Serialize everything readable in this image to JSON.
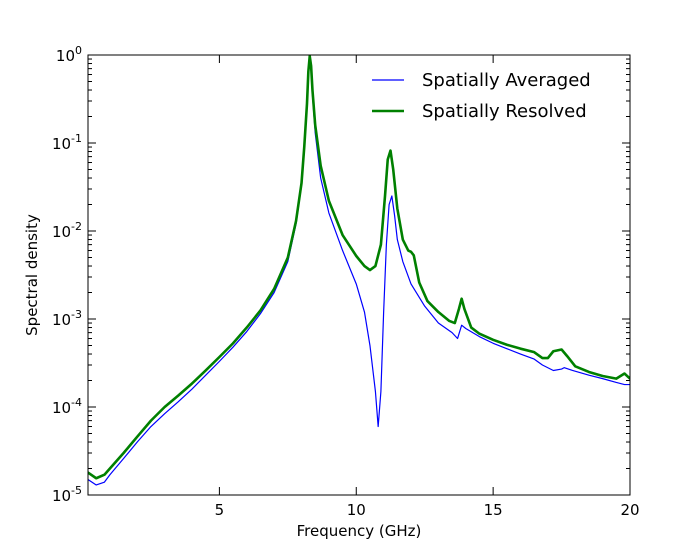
{
  "chart_data": {
    "type": "line",
    "title": "",
    "xlabel": "Frequency (GHz)",
    "ylabel": "Spectral density",
    "xlim": [
      0.2,
      20
    ],
    "ylim": [
      1e-05,
      1
    ],
    "yscale": "log",
    "grid": false,
    "legend_position": "top-right",
    "x_ticks": [
      {
        "value": 5,
        "label": "5"
      },
      {
        "value": 10,
        "label": "10"
      },
      {
        "value": 15,
        "label": "15"
      },
      {
        "value": 20,
        "label": "20"
      }
    ],
    "y_ticks": [
      {
        "value": 1e-05,
        "base": "10",
        "exp": "-5"
      },
      {
        "value": 0.0001,
        "base": "10",
        "exp": "-4"
      },
      {
        "value": 0.001,
        "base": "10",
        "exp": "-3"
      },
      {
        "value": 0.01,
        "base": "10",
        "exp": "-2"
      },
      {
        "value": 0.1,
        "base": "10",
        "exp": "-1"
      },
      {
        "value": 1,
        "base": "10",
        "exp": "0"
      }
    ],
    "series": [
      {
        "name": "Spatially Averaged",
        "color": "#0000ff",
        "line_width": 1.2,
        "points": [
          [
            0.2,
            1.5e-05
          ],
          [
            0.5,
            1.3e-05
          ],
          [
            0.8,
            1.4e-05
          ],
          [
            1.0,
            1.7e-05
          ],
          [
            1.5,
            2.6e-05
          ],
          [
            2.0,
            4e-05
          ],
          [
            2.5,
            6e-05
          ],
          [
            3.0,
            8.4e-05
          ],
          [
            3.5,
            0.000115
          ],
          [
            4.0,
            0.00016
          ],
          [
            4.5,
            0.00023
          ],
          [
            5.0,
            0.00033
          ],
          [
            5.5,
            0.00048
          ],
          [
            6.0,
            0.00072
          ],
          [
            6.5,
            0.00115
          ],
          [
            7.0,
            0.002
          ],
          [
            7.5,
            0.0045
          ],
          [
            7.8,
            0.012
          ],
          [
            8.0,
            0.033
          ],
          [
            8.1,
            0.08
          ],
          [
            8.2,
            0.25
          ],
          [
            8.25,
            0.6
          ],
          [
            8.3,
            0.95
          ],
          [
            8.35,
            0.7
          ],
          [
            8.4,
            0.35
          ],
          [
            8.5,
            0.13
          ],
          [
            8.7,
            0.04
          ],
          [
            9.0,
            0.016
          ],
          [
            9.5,
            0.006
          ],
          [
            10.0,
            0.0025
          ],
          [
            10.3,
            0.0012
          ],
          [
            10.5,
            0.0005
          ],
          [
            10.7,
            0.00015
          ],
          [
            10.8,
            6e-05
          ],
          [
            10.9,
            0.00015
          ],
          [
            11.0,
            0.0012
          ],
          [
            11.1,
            0.007
          ],
          [
            11.2,
            0.02
          ],
          [
            11.3,
            0.025
          ],
          [
            11.4,
            0.015
          ],
          [
            11.5,
            0.008
          ],
          [
            11.7,
            0.0045
          ],
          [
            12.0,
            0.0025
          ],
          [
            12.5,
            0.0014
          ],
          [
            13.0,
            0.0009
          ],
          [
            13.5,
            0.0007
          ],
          [
            13.7,
            0.0006
          ],
          [
            13.85,
            0.00085
          ],
          [
            14.0,
            0.00078
          ],
          [
            14.5,
            0.00063
          ],
          [
            15.0,
            0.00053
          ],
          [
            15.5,
            0.00046
          ],
          [
            16.0,
            0.0004
          ],
          [
            16.5,
            0.00035
          ],
          [
            16.8,
            0.0003
          ],
          [
            17.2,
            0.00026
          ],
          [
            17.5,
            0.00027
          ],
          [
            17.6,
            0.00028
          ],
          [
            17.9,
            0.00026
          ],
          [
            18.5,
            0.00023
          ],
          [
            19.0,
            0.00021
          ],
          [
            19.5,
            0.00019
          ],
          [
            19.8,
            0.00018
          ],
          [
            20.0,
            0.00018
          ]
        ]
      },
      {
        "name": "Spatially Resolved",
        "color": "#008000",
        "line_width": 2.6,
        "points": [
          [
            0.2,
            1.8e-05
          ],
          [
            0.5,
            1.55e-05
          ],
          [
            0.8,
            1.7e-05
          ],
          [
            1.0,
            2e-05
          ],
          [
            1.5,
            3e-05
          ],
          [
            2.0,
            4.6e-05
          ],
          [
            2.5,
            7e-05
          ],
          [
            3.0,
            0.0001
          ],
          [
            3.5,
            0.000135
          ],
          [
            4.0,
            0.000185
          ],
          [
            4.5,
            0.00026
          ],
          [
            5.0,
            0.00037
          ],
          [
            5.5,
            0.00053
          ],
          [
            6.0,
            0.0008
          ],
          [
            6.5,
            0.00125
          ],
          [
            7.0,
            0.0022
          ],
          [
            7.5,
            0.005
          ],
          [
            7.8,
            0.013
          ],
          [
            8.0,
            0.035
          ],
          [
            8.1,
            0.09
          ],
          [
            8.2,
            0.28
          ],
          [
            8.25,
            0.65
          ],
          [
            8.3,
            0.97
          ],
          [
            8.35,
            0.75
          ],
          [
            8.4,
            0.4
          ],
          [
            8.5,
            0.16
          ],
          [
            8.7,
            0.055
          ],
          [
            9.0,
            0.022
          ],
          [
            9.5,
            0.009
          ],
          [
            10.0,
            0.0052
          ],
          [
            10.3,
            0.004
          ],
          [
            10.5,
            0.0036
          ],
          [
            10.7,
            0.004
          ],
          [
            10.9,
            0.007
          ],
          [
            11.05,
            0.025
          ],
          [
            11.15,
            0.065
          ],
          [
            11.25,
            0.082
          ],
          [
            11.35,
            0.05
          ],
          [
            11.5,
            0.018
          ],
          [
            11.7,
            0.008
          ],
          [
            11.9,
            0.006
          ],
          [
            12.0,
            0.0058
          ],
          [
            12.1,
            0.0053
          ],
          [
            12.3,
            0.0026
          ],
          [
            12.6,
            0.0016
          ],
          [
            13.0,
            0.0012
          ],
          [
            13.4,
            0.00095
          ],
          [
            13.6,
            0.0009
          ],
          [
            13.75,
            0.0013
          ],
          [
            13.85,
            0.0017
          ],
          [
            13.95,
            0.0013
          ],
          [
            14.2,
            0.0008
          ],
          [
            14.5,
            0.00068
          ],
          [
            15.0,
            0.00058
          ],
          [
            15.5,
            0.00051
          ],
          [
            16.0,
            0.00046
          ],
          [
            16.5,
            0.00042
          ],
          [
            16.8,
            0.00036
          ],
          [
            17.0,
            0.00036
          ],
          [
            17.2,
            0.00043
          ],
          [
            17.35,
            0.00044
          ],
          [
            17.5,
            0.00045
          ],
          [
            17.7,
            0.00038
          ],
          [
            18.0,
            0.00029
          ],
          [
            18.5,
            0.00025
          ],
          [
            19.0,
            0.000225
          ],
          [
            19.5,
            0.00021
          ],
          [
            19.8,
            0.00024
          ],
          [
            20.0,
            0.00021
          ]
        ]
      }
    ]
  }
}
